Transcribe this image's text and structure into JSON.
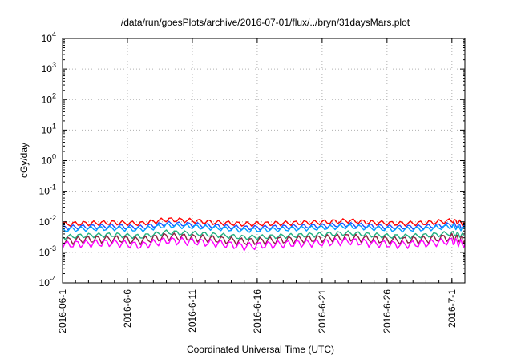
{
  "chart_data": {
    "type": "line",
    "title": "/data/run/goesPlots/archive/2016-07-01/flux/../bryn/31daysMars.plot",
    "xlabel": "Coordinated Universal Time (UTC)",
    "ylabel": "cGy/day",
    "yscale": "log",
    "ylim": [
      0.0001,
      10000
    ],
    "xlim": [
      "2016-06-01",
      "2016-07-02"
    ],
    "grid": true,
    "x_ticks": [
      "2016-06-1",
      "2016-6-6",
      "2016-6-11",
      "2016-6-16",
      "2016-6-21",
      "2016-6-26",
      "2016-7-1"
    ],
    "y_ticks": [
      {
        "base": "10",
        "exp": "-4"
      },
      {
        "base": "10",
        "exp": "-3"
      },
      {
        "base": "10",
        "exp": "-2"
      },
      {
        "base": "10",
        "exp": "-1"
      },
      {
        "base": "10",
        "exp": "0"
      },
      {
        "base": "10",
        "exp": "1"
      },
      {
        "base": "10",
        "exp": "2"
      },
      {
        "base": "10",
        "exp": "3"
      },
      {
        "base": "10",
        "exp": "4"
      }
    ],
    "x_dates": [
      "2016-06-01",
      "2016-06-03",
      "2016-06-05",
      "2016-06-07",
      "2016-06-09",
      "2016-06-11",
      "2016-06-13",
      "2016-06-15",
      "2016-06-17",
      "2016-06-19",
      "2016-06-21",
      "2016-06-23",
      "2016-06-25",
      "2016-06-27",
      "2016-06-29",
      "2016-07-01",
      "2016-07-02"
    ],
    "series": [
      {
        "color": "#ff0000",
        "values": [
          0.0085,
          0.009,
          0.0095,
          0.0088,
          0.012,
          0.011,
          0.0095,
          0.0085,
          0.0088,
          0.0092,
          0.0098,
          0.011,
          0.0095,
          0.0088,
          0.0092,
          0.011,
          0.009
        ]
      },
      {
        "color": "#1f4fff",
        "values": [
          0.0065,
          0.007,
          0.0072,
          0.0066,
          0.0088,
          0.0082,
          0.0072,
          0.0064,
          0.0066,
          0.007,
          0.0074,
          0.0082,
          0.0072,
          0.0066,
          0.007,
          0.0082,
          0.0068
        ]
      },
      {
        "color": "#00a0ff",
        "values": [
          0.0055,
          0.006,
          0.0062,
          0.0056,
          0.0076,
          0.007,
          0.0062,
          0.0054,
          0.0056,
          0.006,
          0.0064,
          0.0071,
          0.0062,
          0.0056,
          0.006,
          0.0071,
          0.0058
        ]
      },
      {
        "color": "#20b080",
        "values": [
          0.0032,
          0.0036,
          0.0038,
          0.0033,
          0.0046,
          0.0042,
          0.0037,
          0.0031,
          0.0033,
          0.0036,
          0.0039,
          0.0043,
          0.0037,
          0.0033,
          0.0036,
          0.0043,
          0.0034
        ]
      },
      {
        "color": "#8b2040",
        "values": [
          0.0024,
          0.0027,
          0.0028,
          0.0025,
          0.0034,
          0.0031,
          0.0027,
          0.0023,
          0.0025,
          0.0027,
          0.0029,
          0.0032,
          0.0027,
          0.0025,
          0.0027,
          0.0032,
          0.0025
        ]
      },
      {
        "color": "#ff00ff",
        "values": [
          0.0018,
          0.002,
          0.0021,
          0.0017,
          0.0025,
          0.0023,
          0.002,
          0.0016,
          0.0018,
          0.002,
          0.0021,
          0.0024,
          0.002,
          0.0018,
          0.002,
          0.0024,
          0.0019
        ]
      }
    ]
  }
}
